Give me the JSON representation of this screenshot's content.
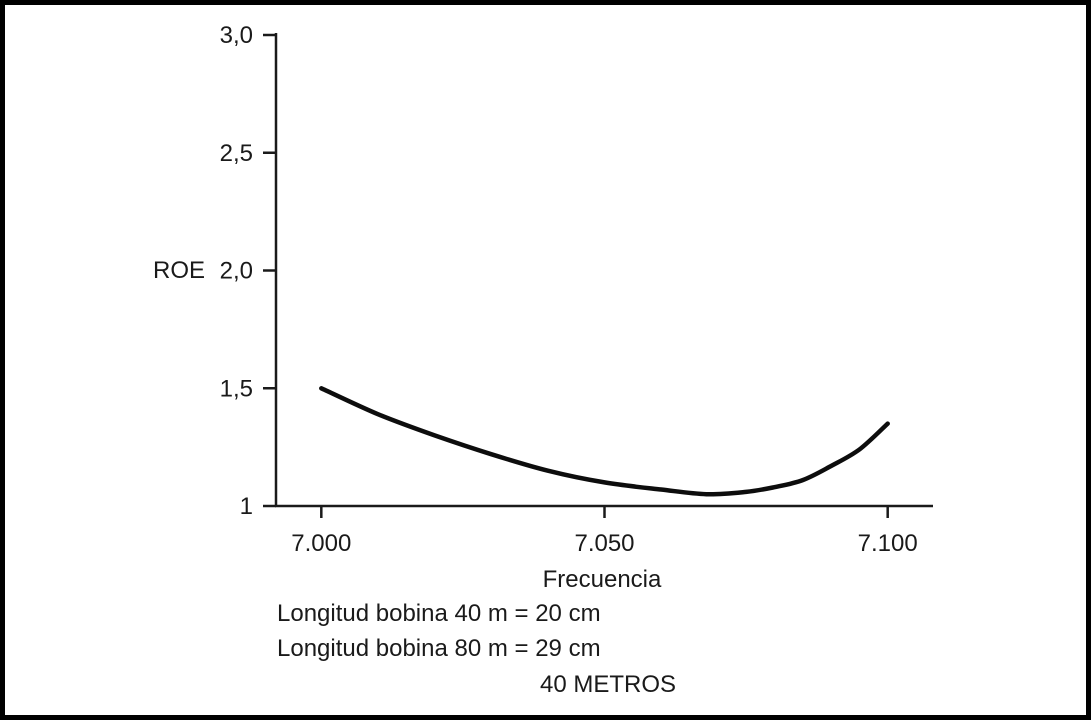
{
  "chart_data": {
    "type": "line",
    "title": "",
    "xlabel": "Frecuencia",
    "ylabel": "ROE",
    "xlim": [
      6.992,
      7.108
    ],
    "ylim": [
      1.0,
      3.0
    ],
    "xticks": [
      {
        "value": 7.0,
        "label": "7.000"
      },
      {
        "value": 7.05,
        "label": "7.050"
      },
      {
        "value": 7.1,
        "label": "7.100"
      }
    ],
    "yticks": [
      {
        "value": 1.0,
        "label": "1"
      },
      {
        "value": 1.5,
        "label": "1,5"
      },
      {
        "value": 2.0,
        "label": "2,0"
      },
      {
        "value": 2.5,
        "label": "2,5"
      },
      {
        "value": 3.0,
        "label": "3,0"
      }
    ],
    "grid": false,
    "series": [
      {
        "x": [
          7.0,
          7.01,
          7.02,
          7.03,
          7.04,
          7.05,
          7.06,
          7.068,
          7.075,
          7.08,
          7.085,
          7.09,
          7.095,
          7.1
        ],
        "y": [
          1.5,
          1.39,
          1.3,
          1.22,
          1.15,
          1.1,
          1.07,
          1.05,
          1.06,
          1.08,
          1.11,
          1.17,
          1.24,
          1.35
        ]
      }
    ]
  },
  "notes": [
    "Longitud bobina 40 m = 20 cm",
    "Longitud bobina 80 m = 29 cm",
    "40 METROS"
  ]
}
